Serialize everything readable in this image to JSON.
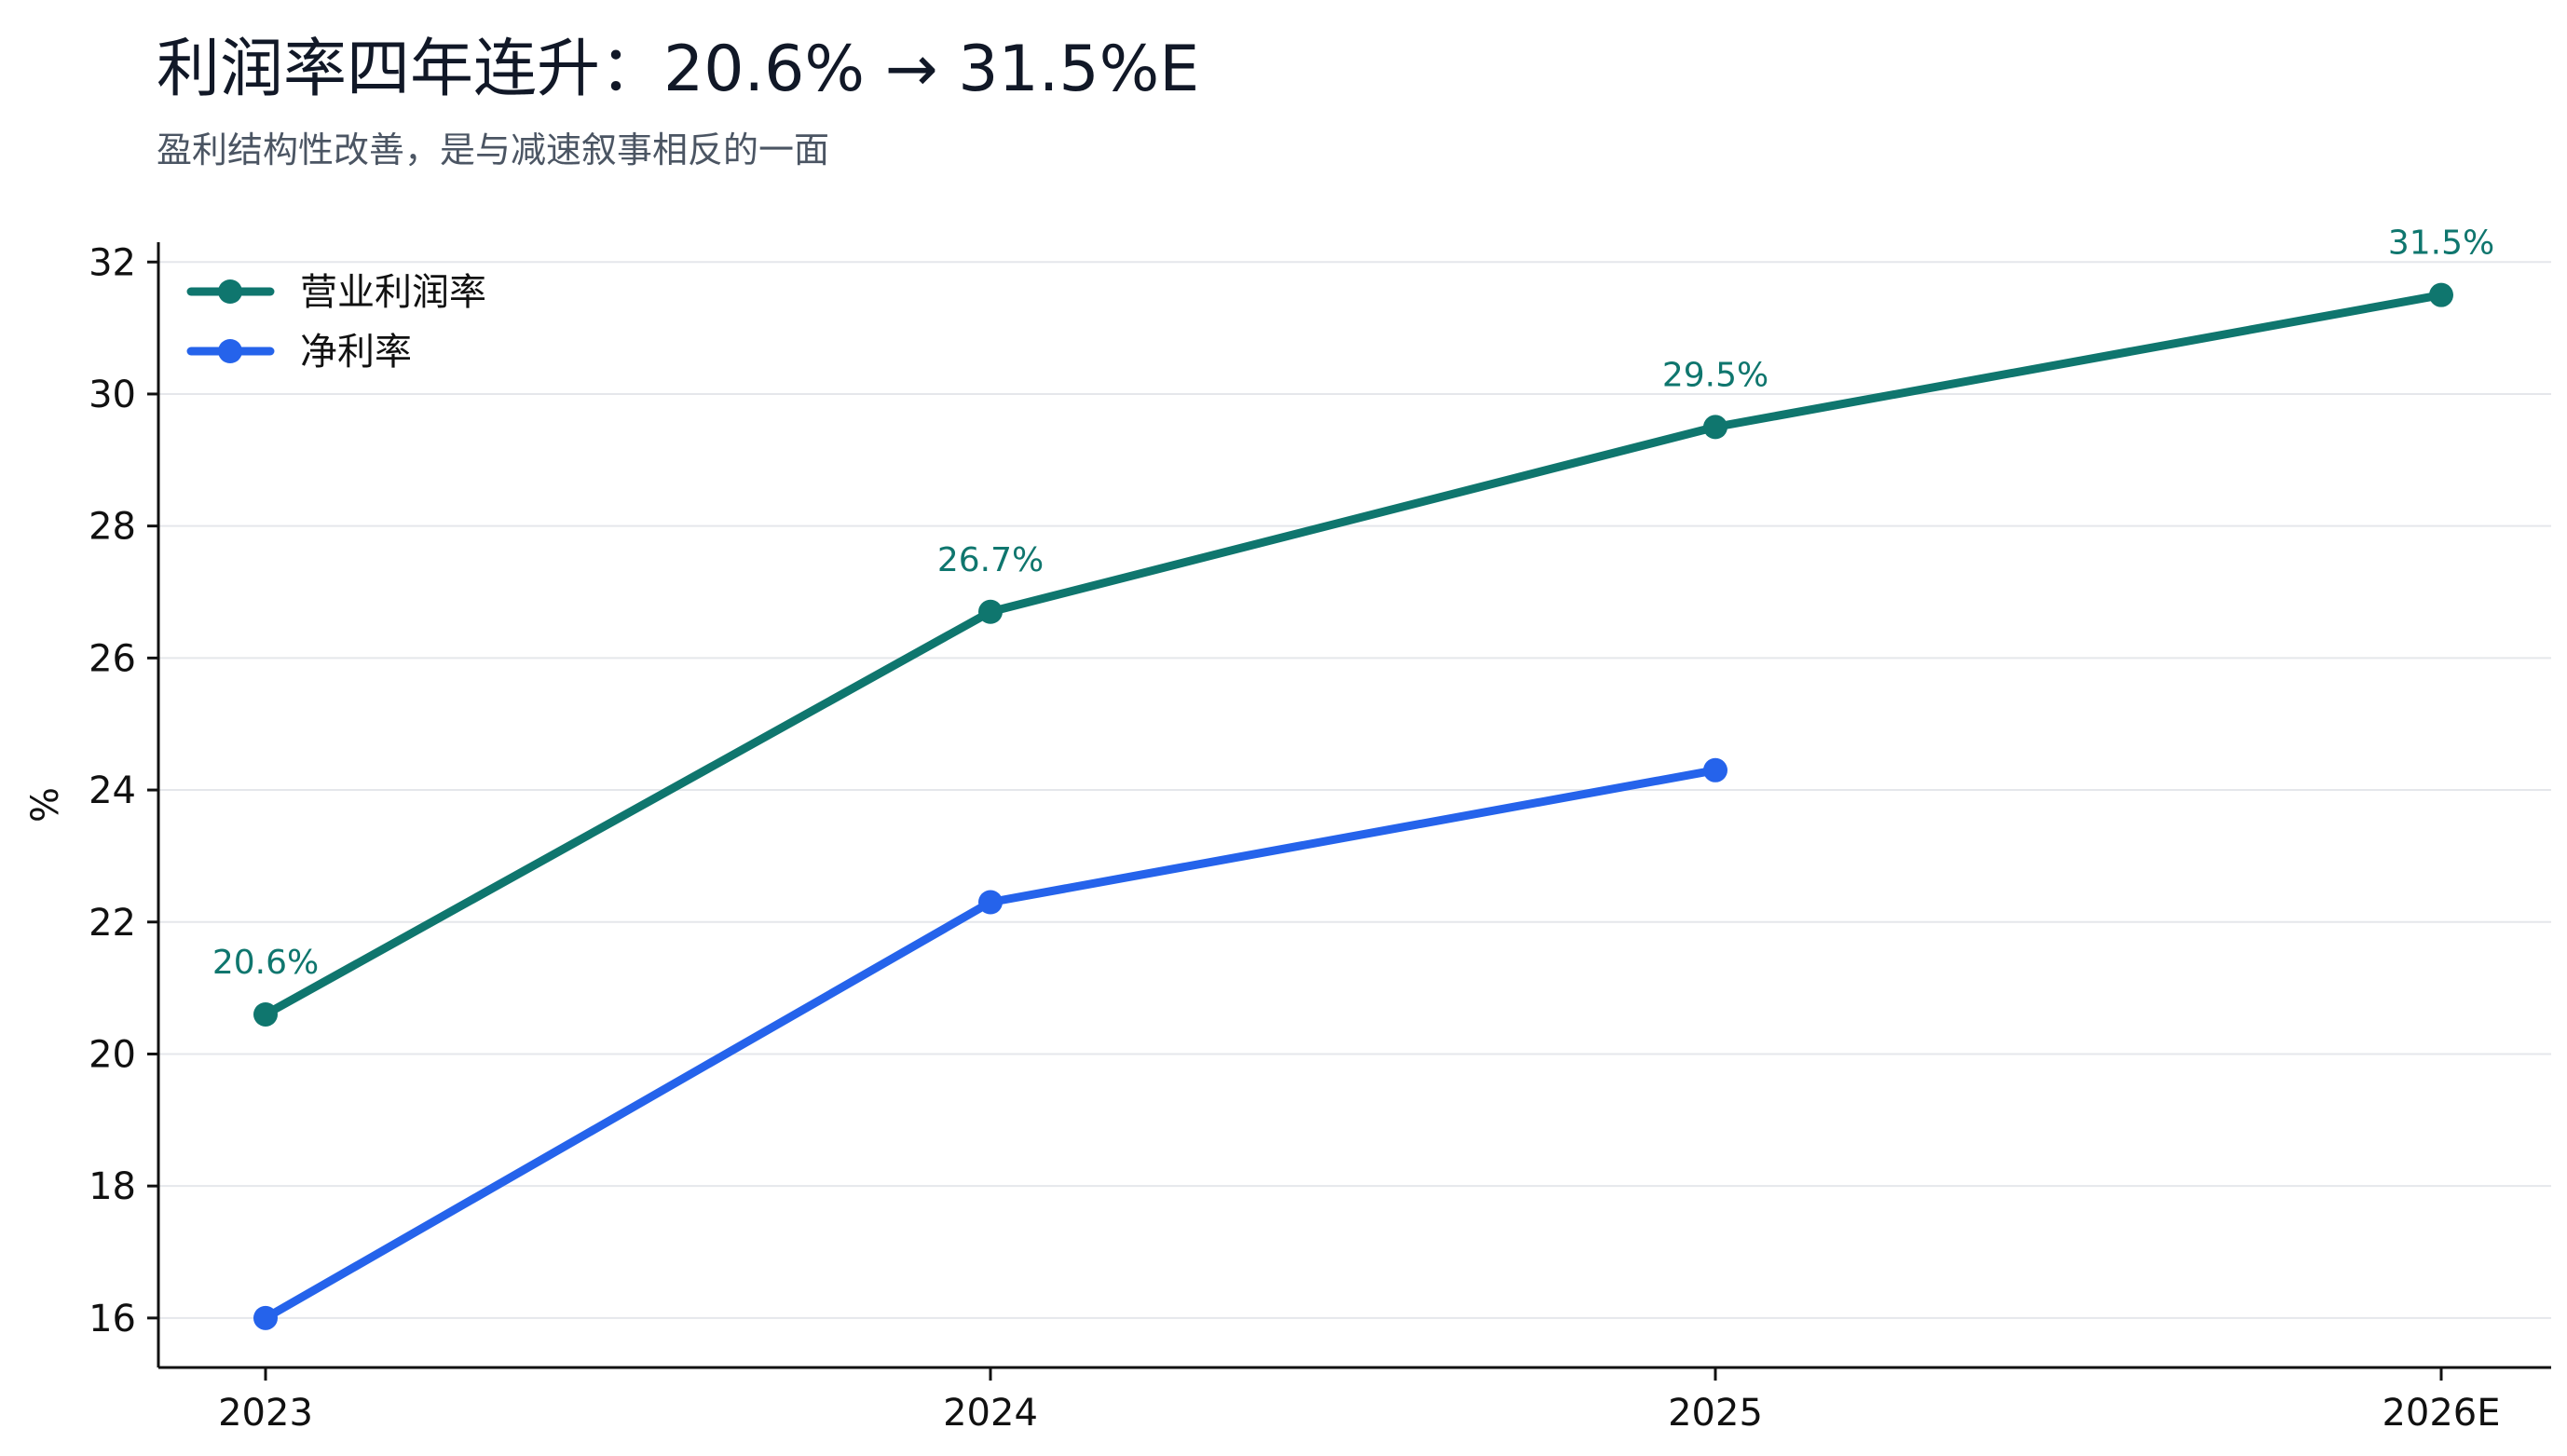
{
  "chart_data": {
    "type": "line",
    "title": "利润率四年连升：20.6% → 31.5%E",
    "subtitle": "盈利结构性改善，是与减速叙事相反的一面",
    "x": [
      "2023",
      "2024",
      "2025",
      "2026E"
    ],
    "ylabel": "%",
    "ylim": [
      15.25,
      32.3
    ],
    "yticks": [
      16,
      18,
      20,
      22,
      24,
      26,
      28,
      30,
      32
    ],
    "grid": true,
    "legend_position": "top-left",
    "series": [
      {
        "name": "营业利润率",
        "color": "#0f766e",
        "values": [
          20.6,
          26.7,
          29.5,
          31.5
        ],
        "labels": [
          "20.6%",
          "26.7%",
          "29.5%",
          "31.5%"
        ]
      },
      {
        "name": "净利率",
        "color": "#2563eb",
        "values": [
          16.0,
          22.3,
          24.3,
          null
        ],
        "labels": []
      }
    ]
  }
}
